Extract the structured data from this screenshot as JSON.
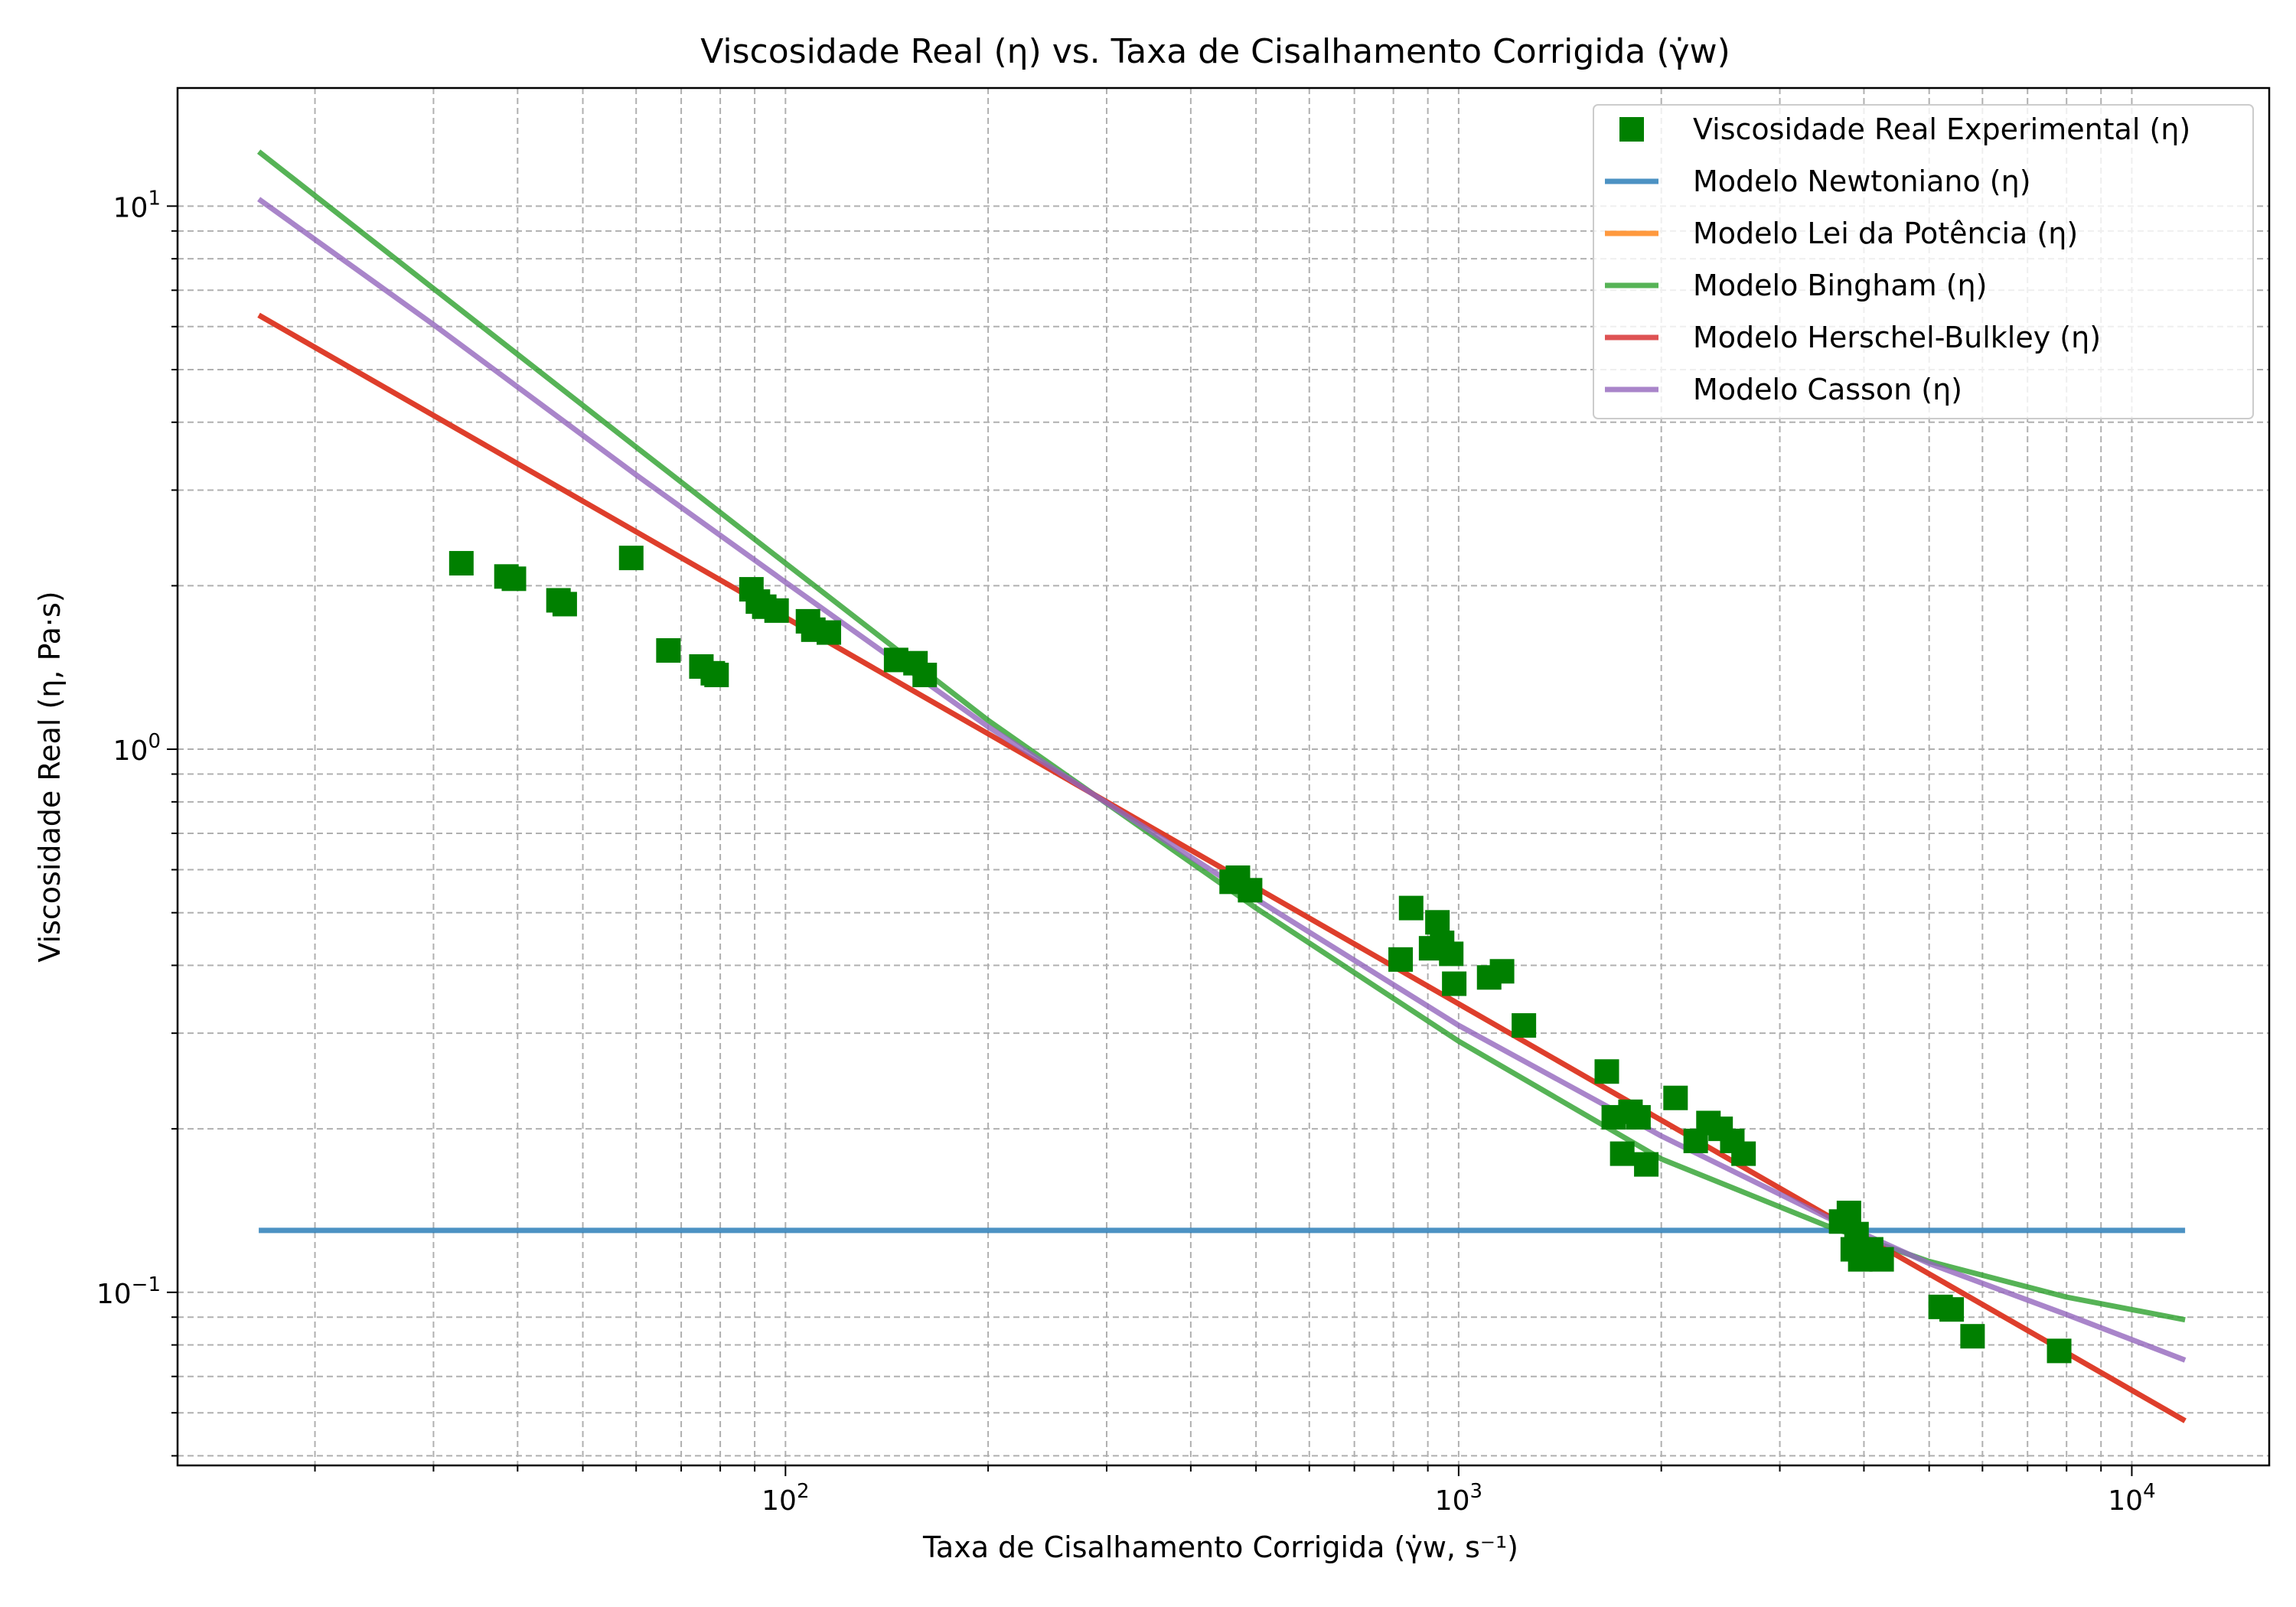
{
  "chart_data": {
    "type": "scatter",
    "title": "Viscosidade Real (η) vs. Taxa de Cisalhamento Corrigida (γ̇w)",
    "xlabel": "Taxa de Cisalhamento Corrigida (γ̇w, s⁻¹)",
    "ylabel": "Viscosidade Real (η, Pa·s)",
    "x_scale": "log",
    "y_scale": "log",
    "xlim": [
      12.5,
      16000
    ],
    "ylim": [
      0.048,
      16.5
    ],
    "x_ticks": [
      {
        "value": 100,
        "base": "10",
        "exp": "2"
      },
      {
        "value": 1000,
        "base": "10",
        "exp": "3"
      },
      {
        "value": 10000,
        "base": "10",
        "exp": "4"
      }
    ],
    "y_ticks": [
      {
        "value": 0.1,
        "base": "10",
        "exp": "−1"
      },
      {
        "value": 1,
        "base": "10",
        "exp": "0"
      },
      {
        "value": 10,
        "base": "10",
        "exp": "1"
      }
    ],
    "grid": true,
    "legend_position": "top-right",
    "legend": [
      {
        "label": "Viscosidade Real Experimental (η)",
        "kind": "marker",
        "color": "#008000"
      },
      {
        "label": "Modelo Newtoniano (η)",
        "kind": "line",
        "color": "#1f77b4"
      },
      {
        "label": "Modelo Lei da Potência (η)",
        "kind": "line",
        "color": "#ff7f0e"
      },
      {
        "label": "Modelo Bingham (η)",
        "kind": "line",
        "color": "#2ca02c"
      },
      {
        "label": "Modelo Herschel-Bulkley (η)",
        "kind": "line",
        "color": "#d62728"
      },
      {
        "label": "Modelo Casson (η)",
        "kind": "line",
        "color": "#9467bd"
      }
    ],
    "scatter": {
      "color": "#008000",
      "marker": "square",
      "points": [
        [
          33,
          2.2
        ],
        [
          38.5,
          2.08
        ],
        [
          39.5,
          2.06
        ],
        [
          46,
          1.88
        ],
        [
          47,
          1.85
        ],
        [
          59,
          2.25
        ],
        [
          67,
          1.52
        ],
        [
          75,
          1.42
        ],
        [
          78,
          1.38
        ],
        [
          79,
          1.37
        ],
        [
          89,
          1.97
        ],
        [
          91,
          1.87
        ],
        [
          93,
          1.83
        ],
        [
          97,
          1.8
        ],
        [
          108,
          1.72
        ],
        [
          110,
          1.66
        ],
        [
          116,
          1.64
        ],
        [
          146,
          1.46
        ],
        [
          156,
          1.44
        ],
        [
          161,
          1.37
        ],
        [
          460,
          0.57
        ],
        [
          470,
          0.58
        ],
        [
          490,
          0.55
        ],
        [
          820,
          0.41
        ],
        [
          850,
          0.51
        ],
        [
          910,
          0.43
        ],
        [
          930,
          0.48
        ],
        [
          945,
          0.44
        ],
        [
          975,
          0.42
        ],
        [
          985,
          0.37
        ],
        [
          1110,
          0.38
        ],
        [
          1160,
          0.39
        ],
        [
          1250,
          0.31
        ],
        [
          1660,
          0.255
        ],
        [
          1700,
          0.21
        ],
        [
          1750,
          0.18
        ],
        [
          1800,
          0.215
        ],
        [
          1850,
          0.21
        ],
        [
          1900,
          0.172
        ],
        [
          2100,
          0.228
        ],
        [
          2250,
          0.19
        ],
        [
          2350,
          0.205
        ],
        [
          2450,
          0.2
        ],
        [
          2550,
          0.19
        ],
        [
          2650,
          0.18
        ],
        [
          3700,
          0.135
        ],
        [
          3800,
          0.14
        ],
        [
          3850,
          0.12
        ],
        [
          3900,
          0.128
        ],
        [
          3950,
          0.115
        ],
        [
          4100,
          0.12
        ],
        [
          4250,
          0.115
        ],
        [
          5200,
          0.094
        ],
        [
          5400,
          0.093
        ],
        [
          5800,
          0.083
        ],
        [
          7800,
          0.078
        ]
      ]
    },
    "series": [
      {
        "name": "Modelo Newtoniano (η)",
        "color": "#1f77b4",
        "x": [
          16.5,
          12000
        ],
        "y": [
          0.13,
          0.13
        ]
      },
      {
        "name": "Modelo Lei da Potência (η)",
        "color": "#ff7f0e",
        "x": [
          16.5,
          12000
        ],
        "y": [
          6.3,
          0.058
        ]
      },
      {
        "name": "Modelo Bingham (η)",
        "color": "#2ca02c",
        "x": [
          16.5,
          30,
          60,
          100,
          200,
          500,
          1000,
          2000,
          3500,
          5000,
          8000,
          12000
        ],
        "y": [
          12.6,
          7.05,
          3.6,
          2.2,
          1.13,
          0.51,
          0.29,
          0.176,
          0.133,
          0.114,
          0.098,
          0.089
        ]
      },
      {
        "name": "Modelo Herschel-Bulkley (η)",
        "color": "#d62728",
        "x": [
          16.5,
          12000
        ],
        "y": [
          6.3,
          0.058
        ]
      },
      {
        "name": "Modelo Casson (η)",
        "color": "#9467bd",
        "x": [
          16.5,
          30,
          60,
          100,
          200,
          500,
          1000,
          2000,
          3500,
          5000,
          8000,
          12000
        ],
        "y": [
          10.3,
          6.05,
          3.2,
          2.03,
          1.1,
          0.53,
          0.31,
          0.194,
          0.138,
          0.113,
          0.091,
          0.075
        ]
      }
    ]
  }
}
